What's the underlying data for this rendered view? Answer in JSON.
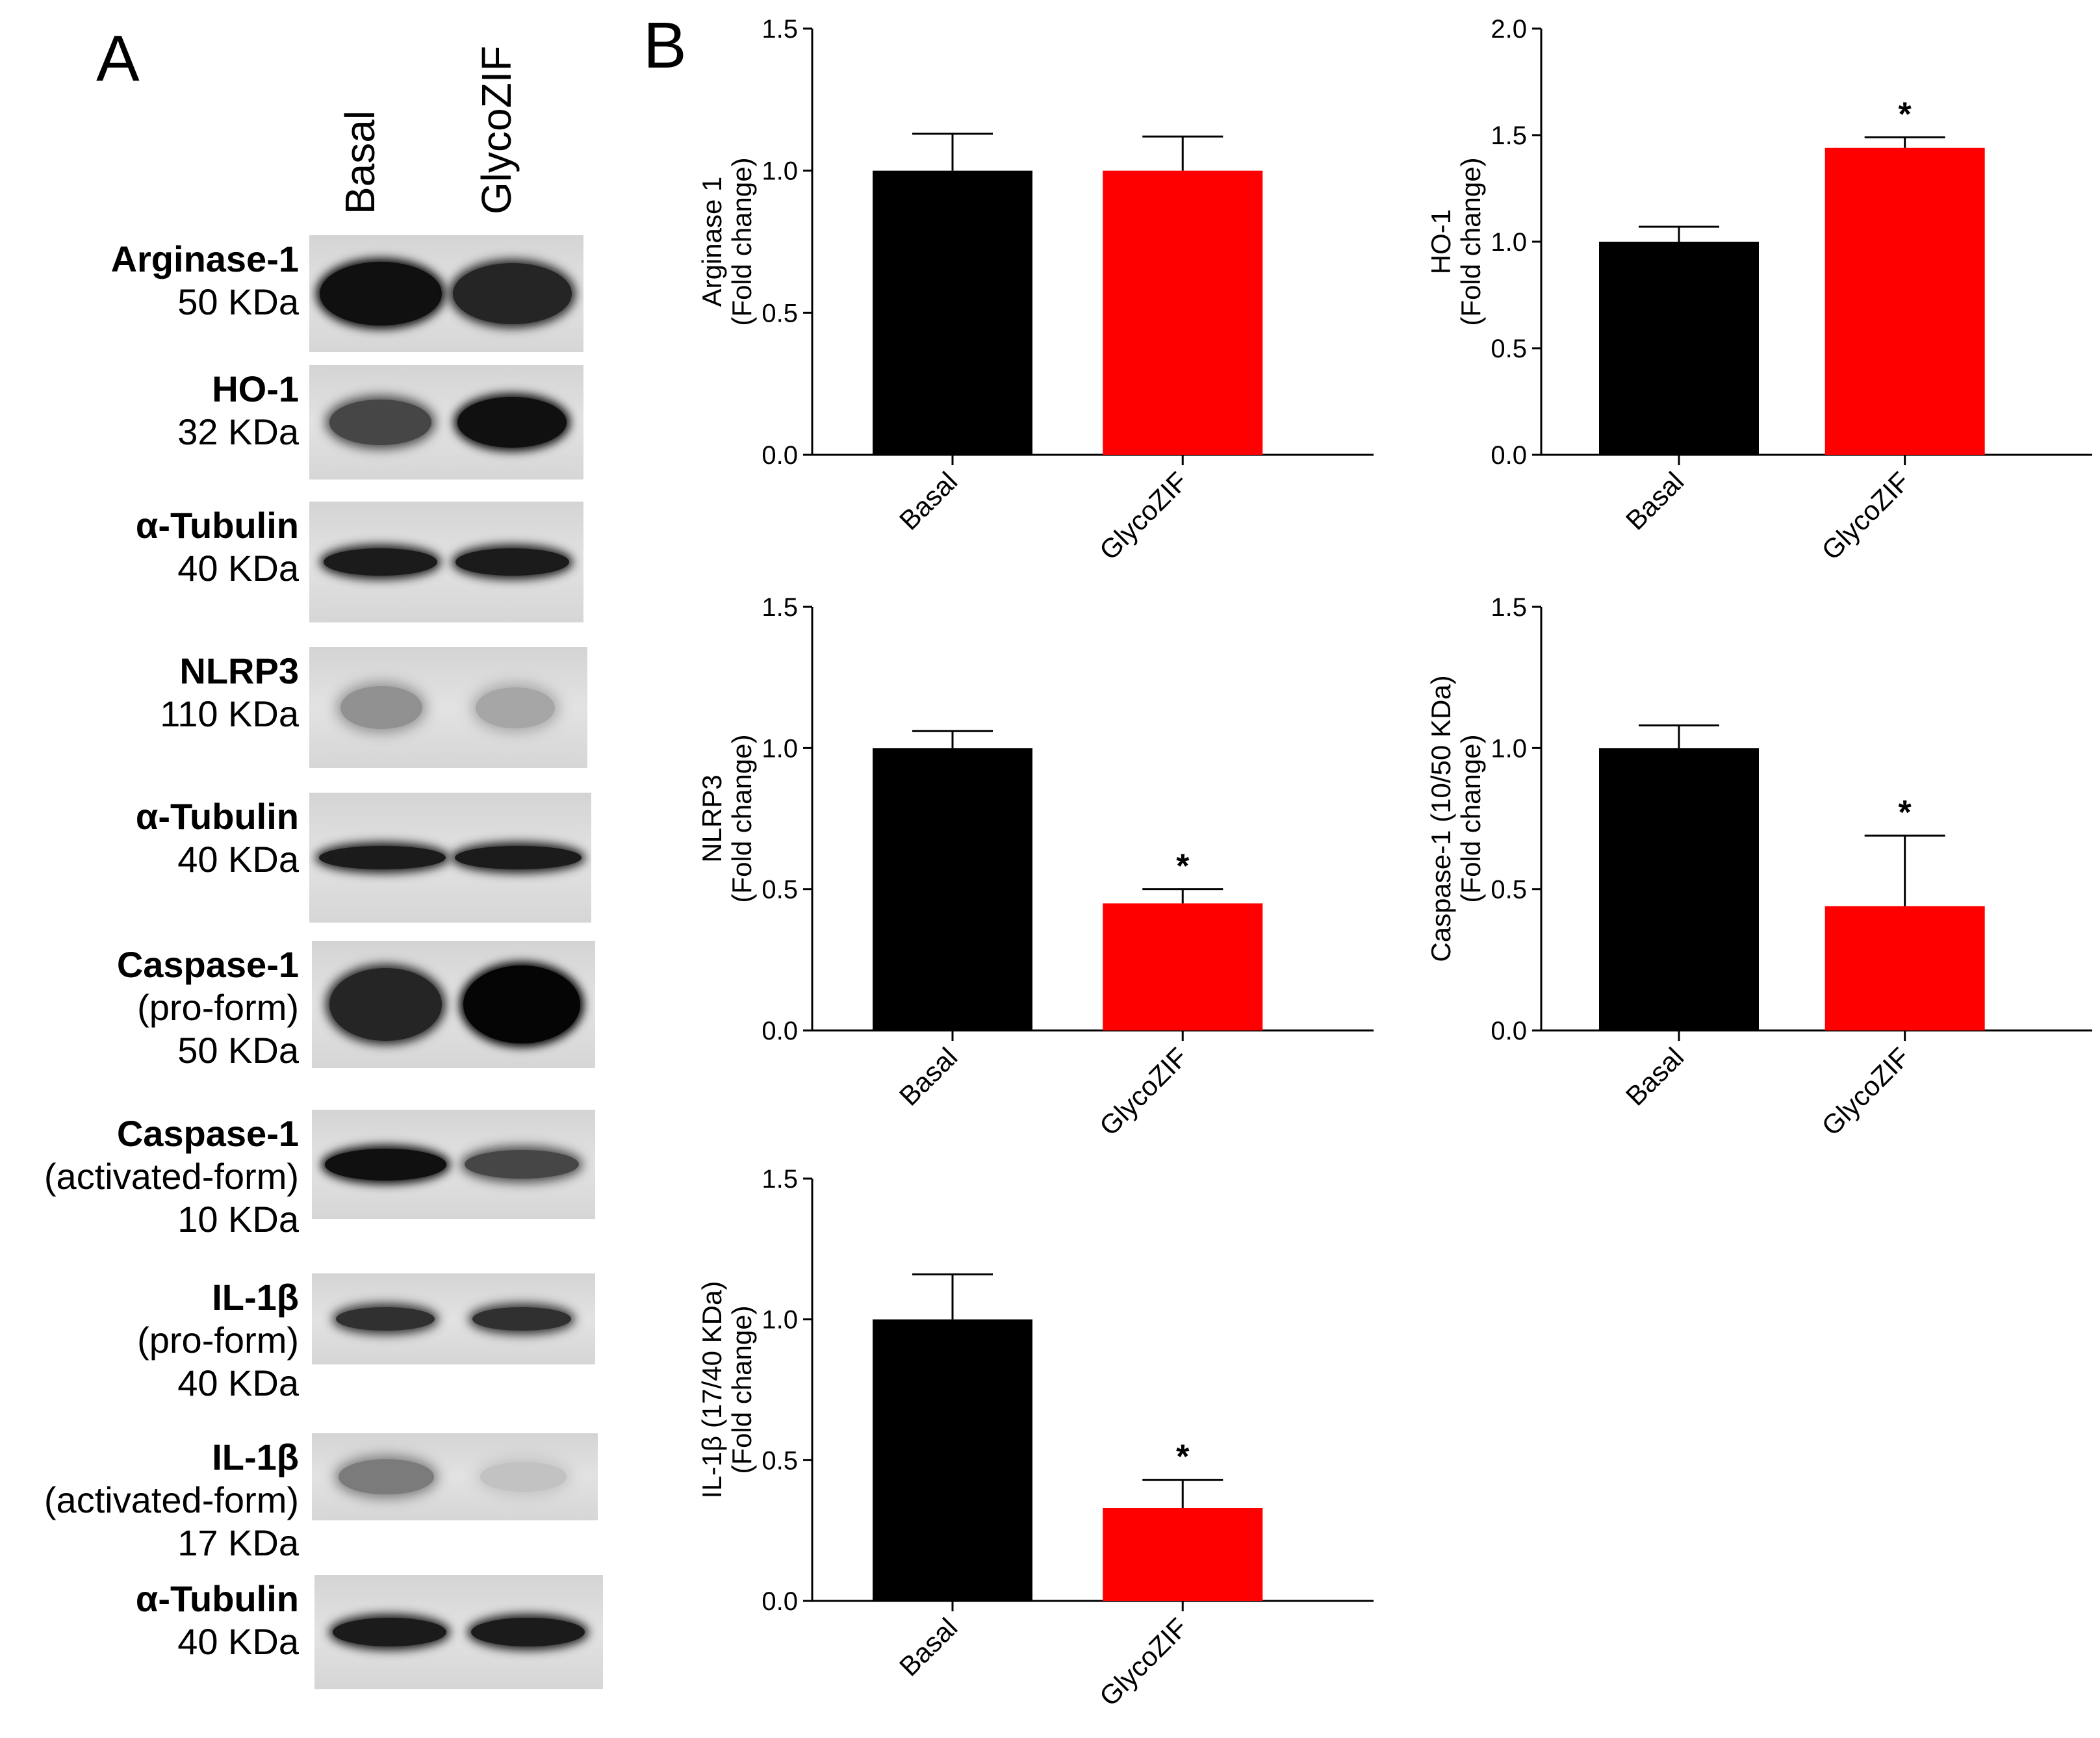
{
  "panelA": {
    "letter": "A",
    "lanes": [
      "Basal",
      "GlycoZIF"
    ],
    "blots": [
      {
        "name": "Arginase-1",
        "sub": "",
        "kda": "50 KDa",
        "bands": [
          0.95,
          0.85
        ]
      },
      {
        "name": "HO-1",
        "sub": "",
        "kda": "32 KDa",
        "bands": [
          0.7,
          0.95
        ]
      },
      {
        "name": "α-Tubulin",
        "sub": "",
        "kda": "40 KDa",
        "bands": [
          0.9,
          0.9
        ]
      },
      {
        "name": "NLRP3",
        "sub": "",
        "kda": "110 KDa",
        "bands": [
          0.35,
          0.25
        ]
      },
      {
        "name": "α-Tubulin",
        "sub": "",
        "kda": "40 KDa",
        "bands": [
          0.9,
          0.9
        ]
      },
      {
        "name": "Caspase-1",
        "sub": "(pro-form)",
        "kda": "50 KDa",
        "bands": [
          0.85,
          1.0
        ]
      },
      {
        "name": "Caspase-1",
        "sub": "(activated-form)",
        "kda": "10 KDa",
        "bands": [
          0.95,
          0.7
        ]
      },
      {
        "name": "IL-1β",
        "sub": "(pro-form)",
        "kda": "40 KDa",
        "bands": [
          0.8,
          0.8
        ]
      },
      {
        "name": "IL-1β",
        "sub": "(activated-form)",
        "kda": "17 KDa",
        "bands": [
          0.45,
          0.12
        ]
      },
      {
        "name": "α-Tubulin",
        "sub": "",
        "kda": "40 KDa",
        "bands": [
          0.9,
          0.9
        ]
      }
    ]
  },
  "panelB": {
    "letter": "B"
  },
  "colors": {
    "basal": "#000000",
    "glycozif": "#ff0000"
  },
  "chart_data": [
    {
      "type": "bar",
      "categories": [
        "Basal",
        "GlycoZIF"
      ],
      "values": [
        1.0,
        1.0
      ],
      "errors": [
        0.13,
        0.12
      ],
      "significant": [
        "",
        ""
      ],
      "ylabel": "Arginase 1",
      "ylabel2": "(Fold change)",
      "ylim": [
        0,
        1.5
      ],
      "ticks": [
        "0.0",
        "0.5",
        "1.0",
        "1.5"
      ],
      "tick_values": [
        0,
        0.5,
        1.0,
        1.5
      ]
    },
    {
      "type": "bar",
      "categories": [
        "Basal",
        "GlycoZIF"
      ],
      "values": [
        1.0,
        1.44
      ],
      "errors": [
        0.07,
        0.05
      ],
      "significant": [
        "",
        "*"
      ],
      "ylabel": "HO-1",
      "ylabel2": "(Fold change)",
      "ylim": [
        0,
        2.0
      ],
      "ticks": [
        "0.0",
        "0.5",
        "1.0",
        "1.5",
        "2.0"
      ],
      "tick_values": [
        0,
        0.5,
        1.0,
        1.5,
        2.0
      ]
    },
    {
      "type": "bar",
      "categories": [
        "Basal",
        "GlycoZIF"
      ],
      "values": [
        1.0,
        0.45
      ],
      "errors": [
        0.06,
        0.05
      ],
      "significant": [
        "",
        "*"
      ],
      "ylabel": "NLRP3",
      "ylabel2": "(Fold change)",
      "ylim": [
        0,
        1.5
      ],
      "ticks": [
        "0.0",
        "0.5",
        "1.0",
        "1.5"
      ],
      "tick_values": [
        0,
        0.5,
        1.0,
        1.5
      ]
    },
    {
      "type": "bar",
      "categories": [
        "Basal",
        "GlycoZIF"
      ],
      "values": [
        1.0,
        0.44
      ],
      "errors": [
        0.08,
        0.25
      ],
      "significant": [
        "",
        "*"
      ],
      "ylabel": "Caspase-1 (10/50 KDa)",
      "ylabel2": "(Fold change)",
      "ylim": [
        0,
        1.5
      ],
      "ticks": [
        "0.0",
        "0.5",
        "1.0",
        "1.5"
      ],
      "tick_values": [
        0,
        0.5,
        1.0,
        1.5
      ]
    },
    {
      "type": "bar",
      "categories": [
        "Basal",
        "GlycoZIF"
      ],
      "values": [
        1.0,
        0.33
      ],
      "errors": [
        0.16,
        0.1
      ],
      "significant": [
        "",
        "*"
      ],
      "ylabel": "IL-1β (17/40 KDa)",
      "ylabel2": "(Fold change)",
      "ylim": [
        0,
        1.5
      ],
      "ticks": [
        "0.0",
        "0.5",
        "1.0",
        "1.5"
      ],
      "tick_values": [
        0,
        0.5,
        1.0,
        1.5
      ]
    }
  ]
}
